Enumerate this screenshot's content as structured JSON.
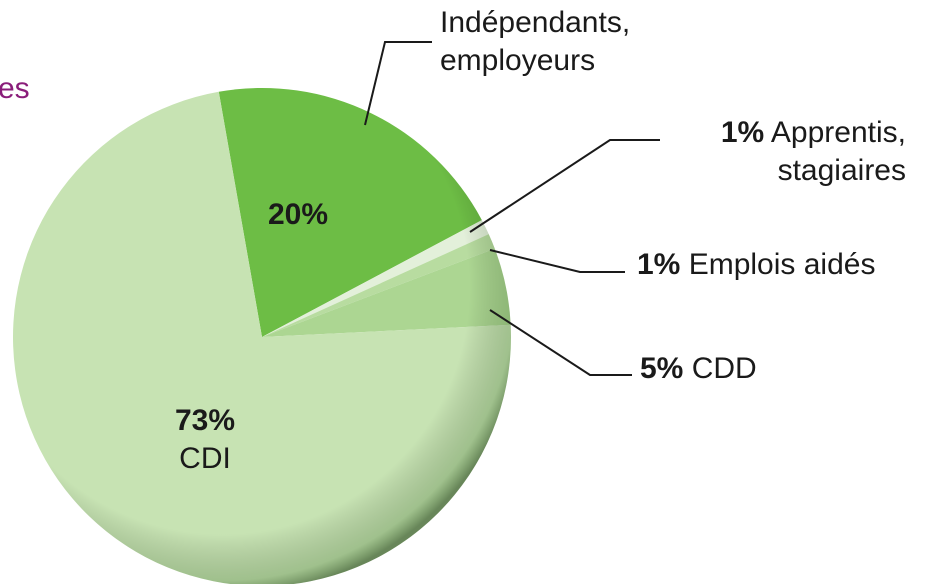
{
  "chart_data": {
    "type": "pie",
    "title": "es",
    "categories": [
      "Indépendants,\nemployeurs",
      "Apprentis,\nstagiaires",
      "Emplois aidés",
      "CDD",
      "CDI"
    ],
    "values": [
      20,
      1,
      1,
      5,
      73
    ],
    "value_labels": [
      "20%",
      "1%",
      "1%",
      "5%",
      "73%"
    ],
    "colors": [
      "#6dbd45",
      "#e3f0da",
      "#b8dca0",
      "#acd692",
      "#c7e3b3"
    ]
  }
}
